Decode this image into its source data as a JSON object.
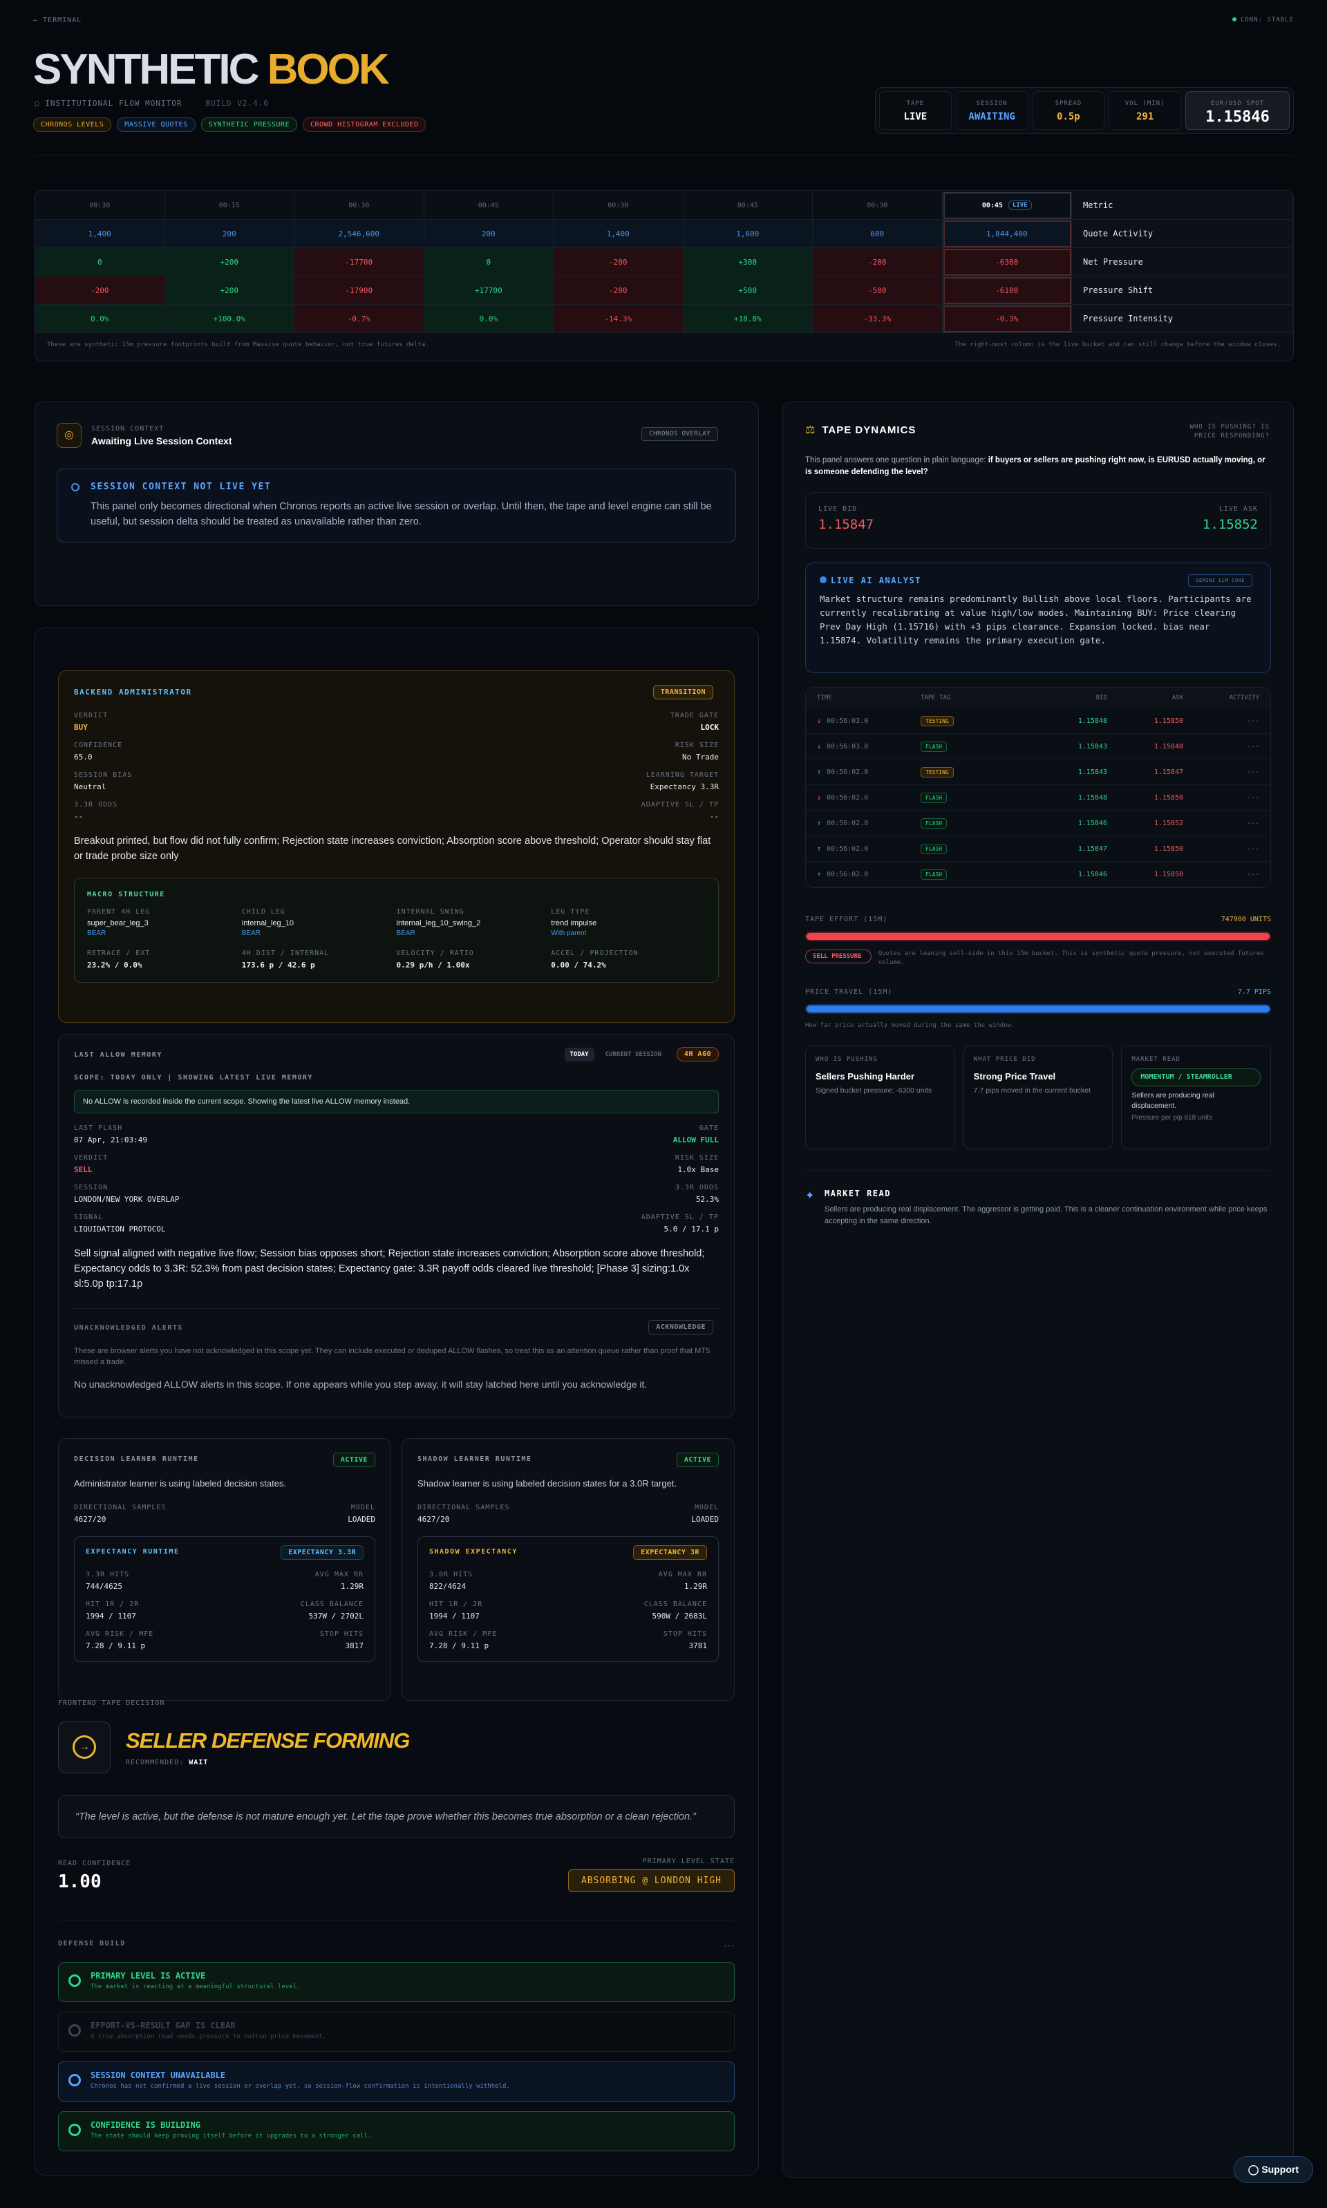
{
  "header": {
    "back": "← TERMINAL",
    "conn": "CONN: STABLE",
    "title_a": "SYNTHETIC",
    "title_b": "BOOK",
    "subtitle": "INSTITUTIONAL FLOW MONITOR",
    "build": "Build v2.4.0",
    "badges": [
      "CHRONOS LEVELS",
      "MASSIVE QUOTES",
      "SYNTHETIC PRESSURE",
      "CROWD HISTOGRAM EXCLUDED"
    ],
    "stats": [
      {
        "label": "TAPE",
        "value": "LIVE"
      },
      {
        "label": "SESSION",
        "value": "AWAITING"
      },
      {
        "label": "SPREAD",
        "value": "0.5p"
      },
      {
        "label": "VOL (MIN)",
        "value": "291"
      },
      {
        "label": "EUR/USD SPOT",
        "value": "1.15846"
      }
    ]
  },
  "footprint": {
    "columns": [
      "00:30",
      "00:15",
      "00:30",
      "00:45",
      "00:30",
      "00:45",
      "00:30",
      "00:45"
    ],
    "live_tag": "LIVE",
    "metric_header": "Metric",
    "rows": [
      {
        "label": "Quote Activity",
        "cells": [
          "1,400",
          "200",
          "2,546,600",
          "200",
          "1,400",
          "1,600",
          "600",
          "1,844,400"
        ]
      },
      {
        "label": "Net Pressure",
        "cells": [
          "0",
          "+200",
          "-17700",
          "0",
          "-200",
          "+300",
          "-200",
          "-6300"
        ]
      },
      {
        "label": "Pressure Shift",
        "cells": [
          "-200",
          "+200",
          "-17900",
          "+17700",
          "-200",
          "+500",
          "-500",
          "-6100"
        ]
      },
      {
        "label": "Pressure Intensity",
        "cells": [
          "0.0%",
          "+100.0%",
          "-0.7%",
          "0.0%",
          "-14.3%",
          "+18.8%",
          "-33.3%",
          "-0.3%"
        ]
      }
    ],
    "note_left": "These are synthetic 15m pressure footprints built from Massive quote behavior, not true futures delta.",
    "note_right": "The right-most column is the live bucket and can still change before the window closes."
  },
  "session_context": {
    "kicker": "SESSION CONTEXT",
    "title": "Awaiting Live Session Context",
    "badge": "CHRONOS OVERLAY",
    "notice_title": "SESSION CONTEXT NOT LIVE YET",
    "notice_text": "This panel only becomes directional when Chronos reports an active live session or overlap. Until then, the tape and level engine can still be useful, but session delta should be treated as unavailable rather than zero."
  },
  "backend": {
    "title": "BACKEND ADMINISTRATOR",
    "badge": "TRANSITION",
    "fields": [
      {
        "label": "VERDICT",
        "value": "BUY"
      },
      {
        "label": "TRADE GATE",
        "value": "LOCK"
      },
      {
        "label": "CONFIDENCE",
        "value": "65.0"
      },
      {
        "label": "RISK SIZE",
        "value": "No Trade"
      },
      {
        "label": "SESSION BIAS",
        "value": "Neutral"
      },
      {
        "label": "LEARNING TARGET",
        "value": "Expectancy 3.3R"
      },
      {
        "label": "3.3R ODDS",
        "value": "--"
      },
      {
        "label": "ADAPTIVE SL / TP",
        "value": "--"
      }
    ],
    "summary": "Breakout printed, but flow did not fully confirm; Rejection state increases conviction; Absorption score above threshold; Operator should stay flat or trade probe size only",
    "macro": {
      "title": "MACRO STRUCTURE",
      "items": [
        {
          "label": "PARENT 4H LEG",
          "value": "super_bear_leg_3",
          "sub": "BEAR"
        },
        {
          "label": "CHILD LEG",
          "value": "internal_leg_10",
          "sub": "BEAR"
        },
        {
          "label": "INTERNAL SWING",
          "value": "internal_leg_10_swing_2",
          "sub": "BEAR"
        },
        {
          "label": "LEG TYPE",
          "value": "trend impulse",
          "sub": "With parent"
        }
      ],
      "stats": [
        {
          "label": "RETRACE / EXT",
          "value": "23.2% / 0.0%"
        },
        {
          "label": "4H DIST / INTERNAL",
          "value": "173.6 p / 42.6 p"
        },
        {
          "label": "VELOCITY / RATIO",
          "value": "0.29 p/h / 1.00x"
        },
        {
          "label": "ACCEL / PROJECTION",
          "value": "0.00 / 74.2%"
        }
      ]
    }
  },
  "last_allow": {
    "title": "LAST ALLOW MEMORY",
    "tabs": [
      "TODAY",
      "CURRENT SESSION"
    ],
    "age": "4H AGO",
    "scope": "SCOPE: TODAY ONLY | SHOWING LATEST LIVE MEMORY",
    "notice": "No ALLOW is recorded inside the current scope. Showing the latest live ALLOW memory instead.",
    "fields": [
      {
        "label": "LAST FLASH",
        "value": "07 Apr, 21:03:49"
      },
      {
        "label": "GATE",
        "value": "ALLOW FULL"
      },
      {
        "label": "VERDICT",
        "value": "SELL"
      },
      {
        "label": "RISK SIZE",
        "value": "1.0x Base"
      },
      {
        "label": "SESSION",
        "value": "LONDON/NEW YORK OVERLAP"
      },
      {
        "label": "3.3R ODDS",
        "value": "52.3%"
      },
      {
        "label": "SIGNAL",
        "value": "LIQUIDATION PROTOCOL"
      },
      {
        "label": "ADAPTIVE SL / TP",
        "value": "5.0 / 17.1 p"
      }
    ],
    "summary": "Sell signal aligned with negative live flow; Session bias opposes short; Rejection state increases conviction; Absorption score above threshold; Expectancy odds to 3.3R: 52.3% from past decision states; Expectancy gate: 3.3R payoff odds cleared live threshold; [Phase 3] sizing:1.0x sl:5.0p tp:17.1p",
    "alerts": {
      "title": "UNACKNOWLEDGED ALERTS",
      "button": "ACKNOWLEDGE",
      "text": "These are browser alerts you have not acknowledged in this scope yet. They can include executed or deduped ALLOW flashes, so treat this as an attention queue rather than proof that MT5 missed a trade.",
      "empty": "No unacknowledged ALLOW alerts in this scope. If one appears while you step away, it will stay latched here until you acknowledge it."
    }
  },
  "learners": [
    {
      "title": "DECISION LEARNER RUNTIME",
      "status": "ACTIVE",
      "text": "Administrator learner is using labeled decision states.",
      "fields": [
        {
          "label": "DIRECTIONAL SAMPLES",
          "value": "4627/20"
        },
        {
          "label": "MODEL",
          "value": "LOADED"
        }
      ],
      "sub": {
        "title": "EXPECTANCY RUNTIME",
        "badge": "EXPECTANCY 3.3R",
        "fields": [
          {
            "label": "3.3R HITS",
            "value": "744/4625"
          },
          {
            "label": "AVG MAX RR",
            "value": "1.29R"
          },
          {
            "label": "HIT 1R / 2R",
            "value": "1994 / 1107"
          },
          {
            "label": "CLASS BALANCE",
            "value": "537W / 2702L"
          },
          {
            "label": "AVG RISK / MFE",
            "value": "7.28 / 9.11 p"
          },
          {
            "label": "STOP HITS",
            "value": "3817"
          }
        ]
      }
    },
    {
      "title": "SHADOW LEARNER RUNTIME",
      "status": "ACTIVE",
      "text": "Shadow learner is using labeled decision states for a 3.0R target.",
      "fields": [
        {
          "label": "DIRECTIONAL SAMPLES",
          "value": "4627/20"
        },
        {
          "label": "MODEL",
          "value": "LOADED"
        }
      ],
      "sub": {
        "title": "SHADOW EXPECTANCY",
        "badge": "EXPECTANCY 3R",
        "fields": [
          {
            "label": "3.0R HITS",
            "value": "822/4624"
          },
          {
            "label": "AVG MAX RR",
            "value": "1.29R"
          },
          {
            "label": "HIT 1R / 2R",
            "value": "1994 / 1107"
          },
          {
            "label": "CLASS BALANCE",
            "value": "590W / 2683L"
          },
          {
            "label": "AVG RISK / MFE",
            "value": "7.28 / 9.11 p"
          },
          {
            "label": "STOP HITS",
            "value": "3781"
          }
        ]
      }
    }
  ],
  "decision": {
    "kicker": "FRONTEND TAPE DECISION",
    "title": "SELLER DEFENSE FORMING",
    "recommended_label": "RECOMMENDED:",
    "recommended": "WAIT",
    "quote": "“The level is active, but the defense is not mature enough yet. Let the tape prove whether this becomes true absorption or a clean rejection.”",
    "confidence_label": "READ CONFIDENCE",
    "confidence": "1.00",
    "level_label": "PRIMARY LEVEL STATE",
    "level": "ABSORBING @ LONDON HIGH",
    "defense_title": "DEFENSE BUILD",
    "items": [
      {
        "title": "PRIMARY LEVEL IS ACTIVE",
        "text": "The market is reacting at a meaningful structural level."
      },
      {
        "title": "EFFORT-VS-RESULT GAP IS CLEAR",
        "text": "A true absorption read needs pressure to outrun price movement."
      },
      {
        "title": "SESSION CONTEXT UNAVAILABLE",
        "text": "Chronos has not confirmed a live session or overlap yet, so session-flow confirmation is intentionally withheld."
      },
      {
        "title": "CONFIDENCE IS BUILDING",
        "text": "The state should keep proving itself before it upgrades to a stronger call."
      }
    ]
  },
  "tape": {
    "title": "TAPE DYNAMICS",
    "question": "WHO IS PUSHING? IS PRICE RESPONDING?",
    "intro": "This panel answers one question in plain language:",
    "intro_bold": "if buyers or sellers are pushing right now, is EURUSD actually moving, or is someone defending the level?",
    "bid_label": "LIVE BID",
    "bid": "1.15847",
    "ask_label": "LIVE ASK",
    "ask": "1.15852",
    "analyst_title": "LIVE AI ANALYST",
    "analyst_badge": "GEMINI LLM CORE",
    "analyst_text": "Market structure remains predominantly Bullish above local floors. Participants are currently recalibrating at value high/low modes. Maintaining BUY: Price clearing Prev Day High (1.15716) with +3 pips clearance. Expansion locked. bias near 1.15874. Volatility remains the primary execution gate.",
    "headers": [
      "TIME",
      "TAPE TAG",
      "BID",
      "ASK",
      "ACTIVITY"
    ],
    "rows": [
      {
        "dir": "↓",
        "time": "00:56:03.0",
        "tag": "TESTING",
        "bid": "1.15848",
        "ask": "1.15850",
        "activity": "---"
      },
      {
        "dir": "↓",
        "time": "00:56:03.0",
        "tag": "FLASH",
        "bid": "1.15843",
        "ask": "1.15848",
        "activity": "---"
      },
      {
        "dir": "↑",
        "time": "00:56:02.0",
        "tag": "TESTING",
        "bid": "1.15843",
        "ask": "1.15847",
        "activity": "---"
      },
      {
        "dir": "↓",
        "time": "00:56:02.0",
        "tag": "FLASH",
        "bid": "1.15848",
        "ask": "1.15850",
        "activity": "---"
      },
      {
        "dir": "↑",
        "time": "00:56:02.0",
        "tag": "FLASH",
        "bid": "1.15846",
        "ask": "1.15852",
        "activity": "---"
      },
      {
        "dir": "↑",
        "time": "00:56:02.0",
        "tag": "FLASH",
        "bid": "1.15847",
        "ask": "1.15850",
        "activity": "---"
      },
      {
        "dir": "↑",
        "time": "00:56:02.0",
        "tag": "FLASH",
        "bid": "1.15846",
        "ask": "1.15850",
        "activity": "---"
      }
    ],
    "effort_label": "TAPE EFFORT (15M)",
    "effort_value": "747900 UNITS",
    "effort_badge": "SELL PRESSURE",
    "effort_text": "Quotes are leaning sell-side in this 15m bucket. This is synthetic quote pressure, not executed futures volume.",
    "travel_label": "PRICE TRAVEL (15M)",
    "travel_value": "7.7 PIPS",
    "travel_text": "How far price actually moved during the same the window.",
    "cards": [
      {
        "label": "WHO IS PUSHING",
        "title": "Sellers Pushing Harder",
        "text": "Signed bucket pressure: -6300 units"
      },
      {
        "label": "WHAT PRICE DID",
        "title": "Strong Price Travel",
        "text": "7.7 pips moved in the current bucket"
      },
      {
        "label": "MARKET READ",
        "badge": "MOMENTUM / STEAMROLLER",
        "text": "Sellers are producing real displacement.",
        "extra": "Pressure per pip 818 units"
      }
    ],
    "read_title": "MARKET READ",
    "read_text": "Sellers are producing real displacement. The aggressor is getting paid. This is a cleaner continuation environment while price keeps accepting in the same direction."
  },
  "support": "Support"
}
